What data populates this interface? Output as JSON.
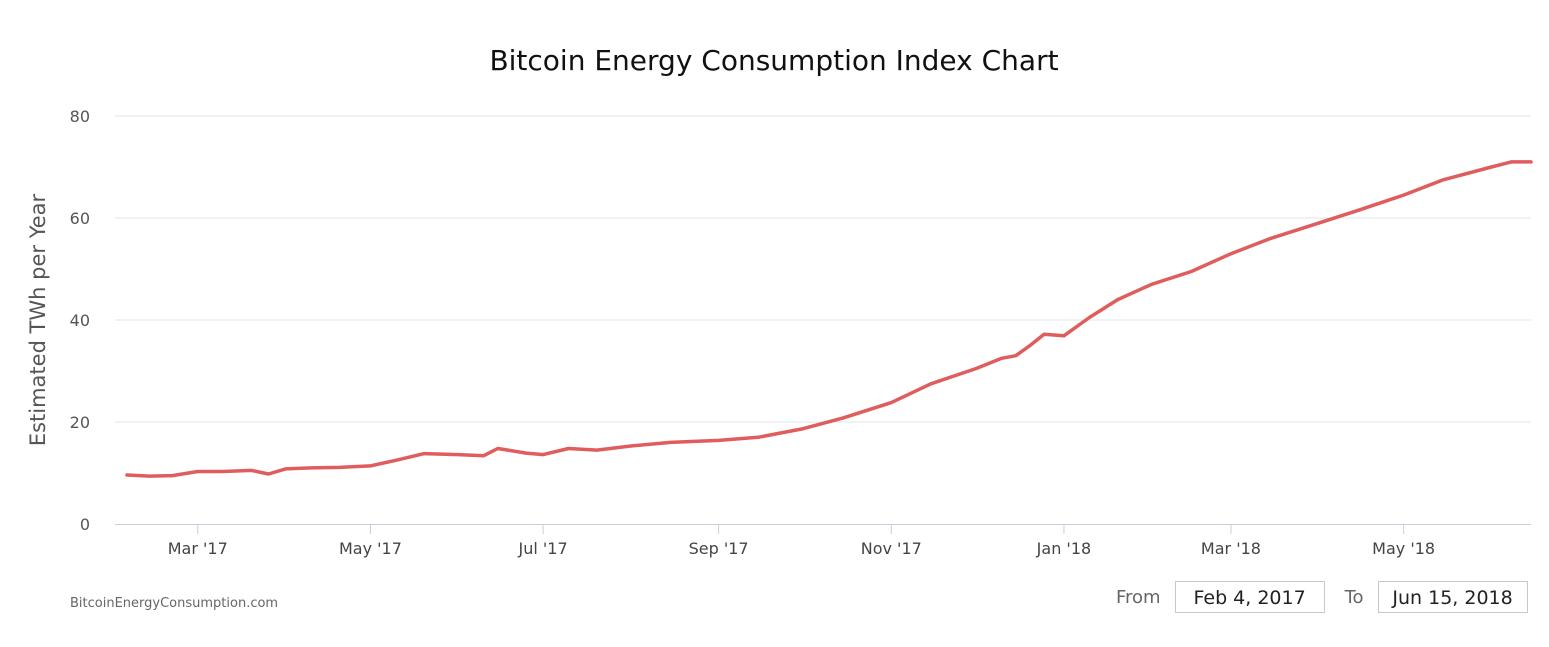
{
  "chart_data": {
    "type": "line",
    "title": "Bitcoin Energy Consumption Index Chart",
    "xlabel": "",
    "ylabel": "Estimated TWh per Year",
    "ylim": [
      0,
      80
    ],
    "yticks": [
      0,
      20,
      40,
      60,
      80
    ],
    "xticks": [
      "Mar '17",
      "May '17",
      "Jul '17",
      "Sep '17",
      "Nov '17",
      "Jan '18",
      "Mar '18",
      "May '18"
    ],
    "xtick_dates": [
      "2017-03-01",
      "2017-05-01",
      "2017-07-01",
      "2017-09-01",
      "2017-11-01",
      "2018-01-01",
      "2018-03-01",
      "2018-05-01"
    ],
    "x_range": [
      "2017-02-04",
      "2018-06-15"
    ],
    "grid": true,
    "series": [
      {
        "name": "Estimated TWh per Year",
        "color": "#e05d5d",
        "x": [
          "2017-02-04",
          "2017-02-12",
          "2017-02-20",
          "2017-03-01",
          "2017-03-10",
          "2017-03-20",
          "2017-03-26",
          "2017-04-01",
          "2017-04-10",
          "2017-04-20",
          "2017-05-01",
          "2017-05-10",
          "2017-05-20",
          "2017-06-01",
          "2017-06-10",
          "2017-06-15",
          "2017-06-25",
          "2017-07-01",
          "2017-07-10",
          "2017-07-20",
          "2017-08-01",
          "2017-08-15",
          "2017-09-01",
          "2017-09-15",
          "2017-10-01",
          "2017-10-15",
          "2017-11-01",
          "2017-11-15",
          "2017-12-01",
          "2017-12-10",
          "2017-12-15",
          "2017-12-20",
          "2017-12-25",
          "2018-01-01",
          "2018-01-10",
          "2018-01-20",
          "2018-02-01",
          "2018-02-15",
          "2018-03-01",
          "2018-03-15",
          "2018-04-01",
          "2018-04-15",
          "2018-05-01",
          "2018-05-15",
          "2018-06-01",
          "2018-06-08",
          "2018-06-15"
        ],
        "values": [
          9.6,
          9.4,
          9.5,
          10.3,
          10.3,
          10.5,
          9.8,
          10.8,
          11.0,
          11.1,
          11.4,
          12.5,
          13.8,
          13.6,
          13.4,
          14.8,
          13.9,
          13.6,
          14.8,
          14.5,
          15.3,
          16.0,
          16.4,
          17.0,
          18.7,
          20.8,
          23.8,
          27.5,
          30.5,
          32.5,
          33.0,
          35.0,
          37.2,
          36.9,
          40.5,
          44.0,
          47.0,
          49.5,
          53.0,
          56.0,
          59.0,
          61.5,
          64.5,
          67.5,
          70.0,
          71.0,
          71.0
        ]
      }
    ]
  },
  "footer": {
    "credit": "BitcoinEnergyConsumption.com",
    "from_label": "From",
    "from_value": "Feb 4, 2017",
    "to_label": "To",
    "to_value": "Jun 15, 2018"
  }
}
